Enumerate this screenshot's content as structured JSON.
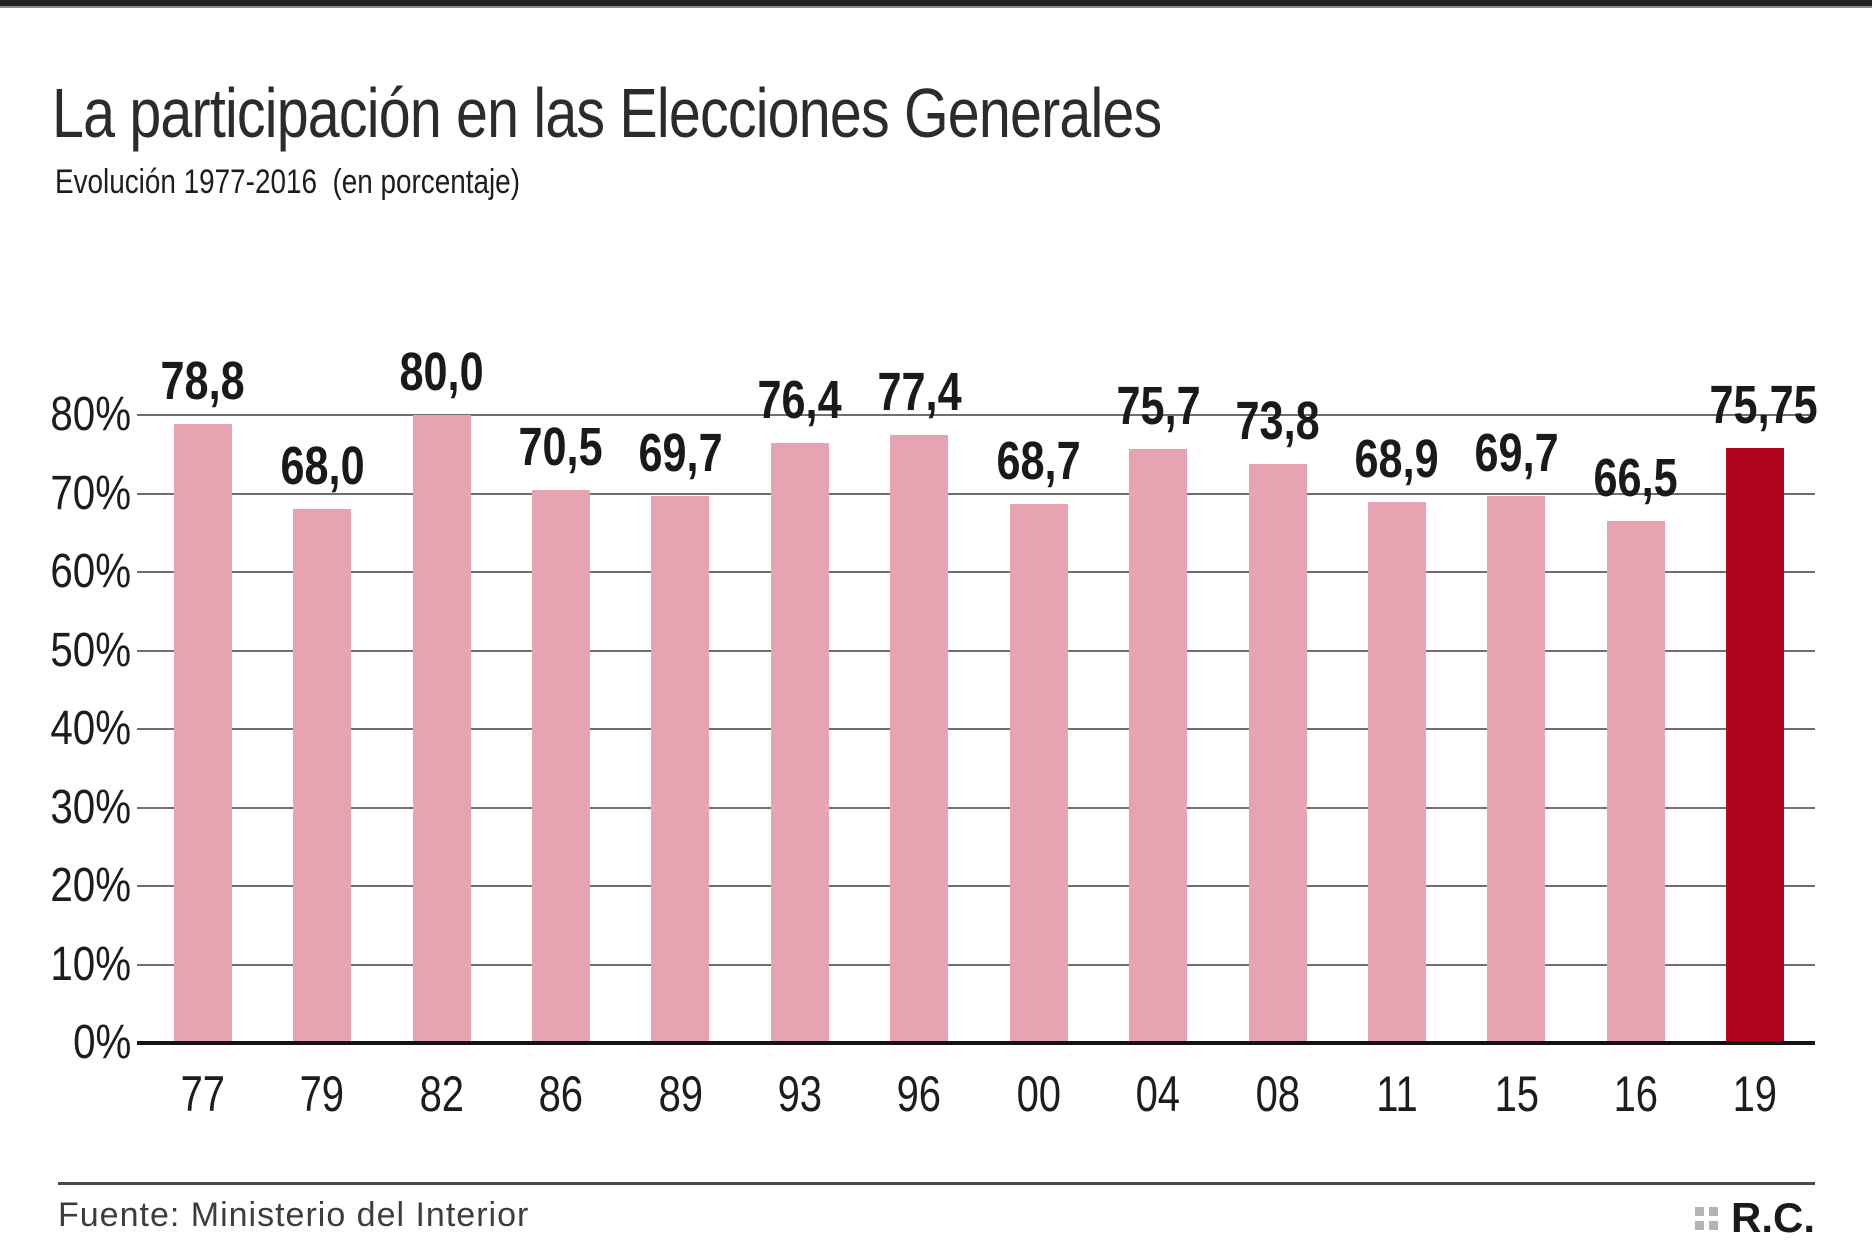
{
  "page": {
    "title": "La participación en las Elecciones Generales",
    "subtitle": "Evolución 1977-2016  (en porcentaje)",
    "source": "Fuente: Ministerio del Interior",
    "logo_text": "R.C."
  },
  "colors": {
    "bar_pink": "#e6a4b2",
    "bar_highlight_red": "#b2041e",
    "gridline_gray": "#6f6f6f",
    "baseline_black": "#141414",
    "text_dark": "#1d1d1b"
  },
  "chart_data": {
    "type": "bar",
    "title": "La participación en las Elecciones Generales",
    "subtitle": "Evolución 1977-2016 (en porcentaje)",
    "categories": [
      "77",
      "79",
      "82",
      "86",
      "89",
      "93",
      "96",
      "00",
      "04",
      "08",
      "11",
      "15",
      "16",
      "19"
    ],
    "values": [
      78.8,
      68.0,
      80.0,
      70.5,
      69.7,
      76.4,
      77.4,
      68.7,
      75.7,
      73.8,
      68.9,
      69.7,
      66.5,
      75.75
    ],
    "value_labels": [
      "78,8",
      "68,0",
      "80,0",
      "70,5",
      "69,7",
      "76,4",
      "77,4",
      "68,7",
      "75,7",
      "73,8",
      "68,9",
      "69,7",
      "66,5",
      "75,75"
    ],
    "highlight_category": "19",
    "bar_color": "#e6a4b2",
    "highlight_color": "#b2041e",
    "xlabel": "",
    "ylabel": "",
    "yticks": [
      "0%",
      "10%",
      "20%",
      "30%",
      "40%",
      "50%",
      "60%",
      "70%",
      "80%"
    ],
    "ylim": [
      0,
      80
    ],
    "grid": true,
    "legend": false,
    "source": "Fuente: Ministerio del Interior"
  }
}
